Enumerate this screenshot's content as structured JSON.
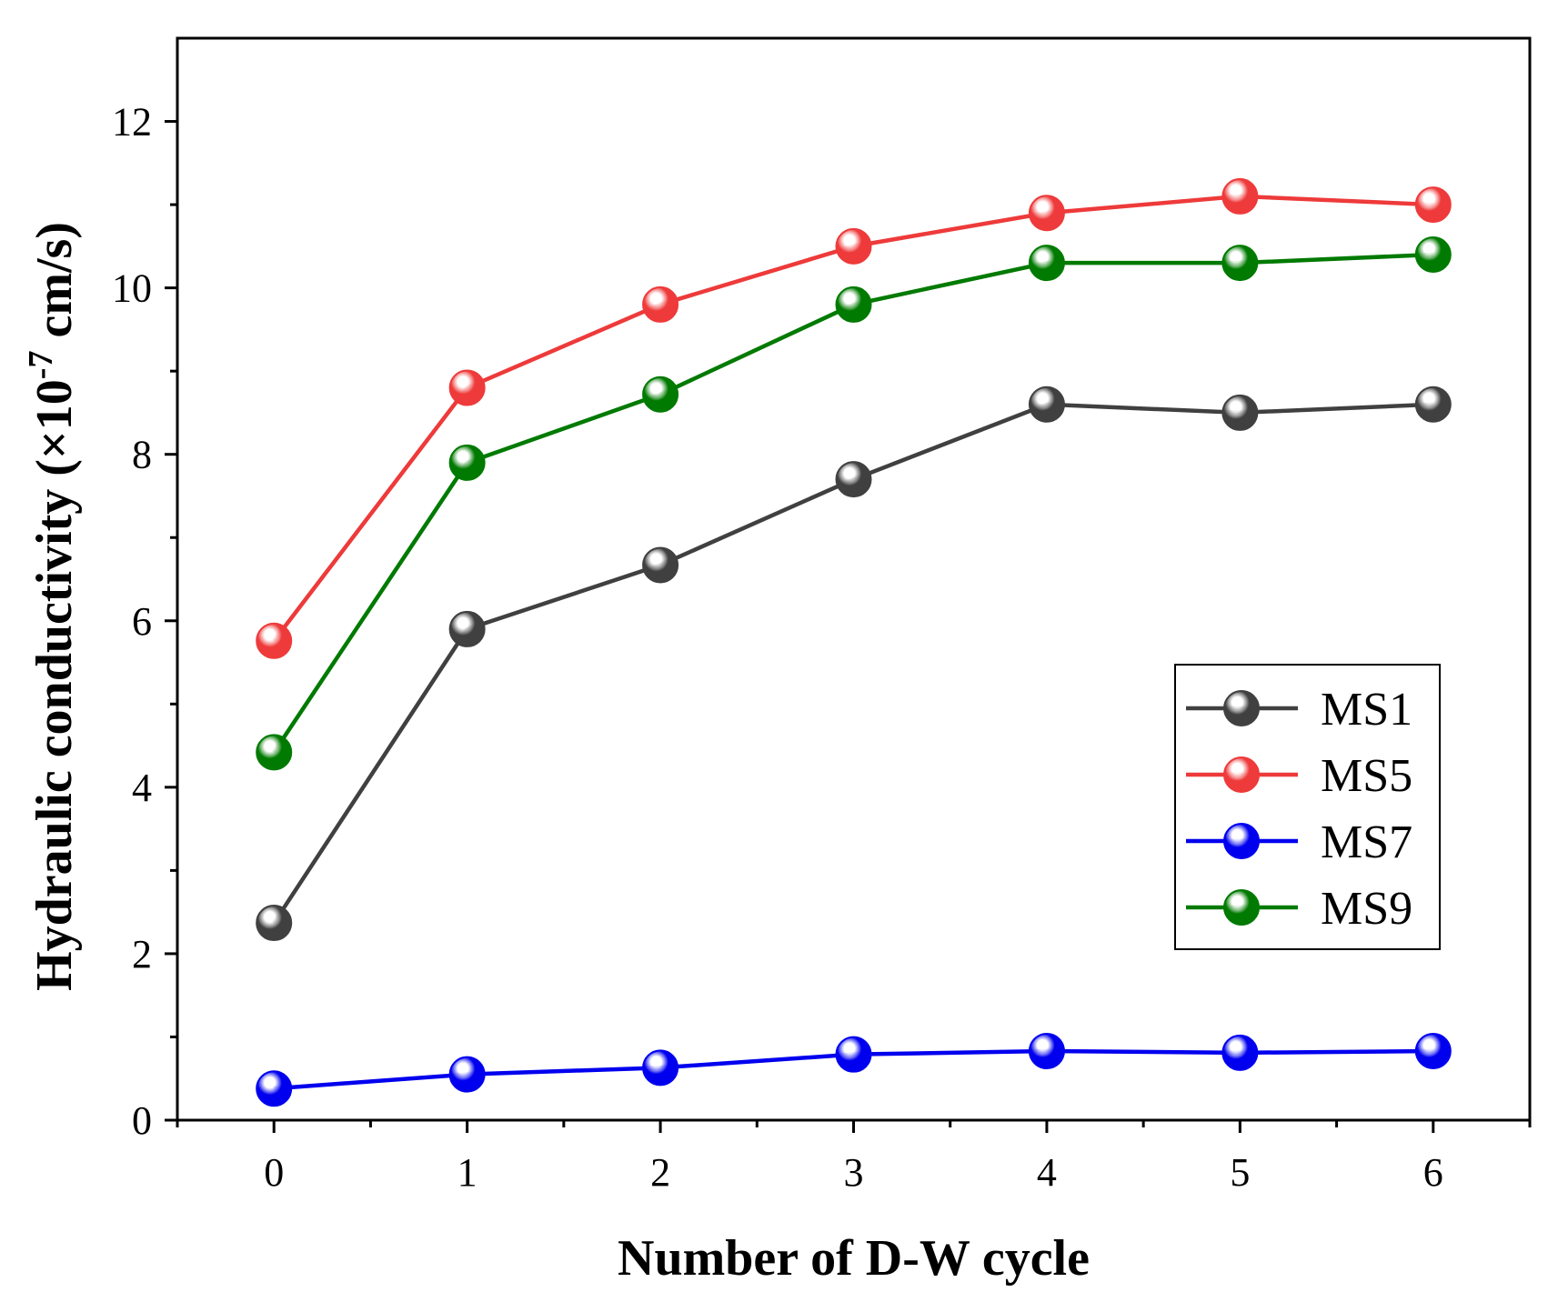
{
  "chart_data": {
    "type": "line",
    "title": "",
    "xlabel": "Number of D-W cycle",
    "ylabel": {
      "main": "Hydraulic conductivity (×10",
      "exponent": "-7",
      "unit": " cm/s)"
    },
    "x": [
      0,
      1,
      2,
      3,
      4,
      5,
      6
    ],
    "xlim": [
      -0.5,
      6.5
    ],
    "ylim": [
      0,
      13
    ],
    "xticks": [
      "0",
      "1",
      "2",
      "3",
      "4",
      "5",
      "6"
    ],
    "yticks": [
      "0",
      "2",
      "4",
      "6",
      "8",
      "10",
      "12"
    ],
    "ytick_values": [
      0,
      2,
      4,
      6,
      8,
      10,
      12
    ],
    "legend_position": "bottom-right",
    "series": [
      {
        "name": "MS1",
        "color": "#404040",
        "values": [
          2.37,
          5.9,
          6.67,
          7.7,
          8.6,
          8.5,
          8.6
        ]
      },
      {
        "name": "MS5",
        "color": "#ee3a3a",
        "values": [
          5.76,
          8.8,
          9.8,
          10.5,
          10.9,
          11.1,
          11.0
        ]
      },
      {
        "name": "MS7",
        "color": "#0000ee",
        "values": [
          0.38,
          0.55,
          0.63,
          0.79,
          0.83,
          0.81,
          0.83
        ]
      },
      {
        "name": "MS9",
        "color": "#007a00",
        "values": [
          4.42,
          7.9,
          8.72,
          9.8,
          10.3,
          10.3,
          10.4
        ]
      }
    ]
  }
}
